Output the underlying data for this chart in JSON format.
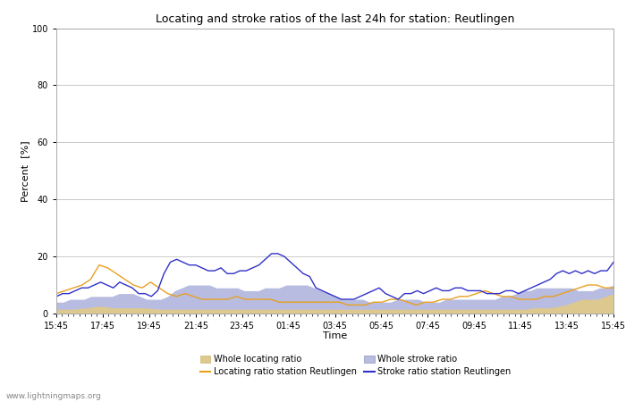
{
  "title": "Locating and stroke ratios of the last 24h for station: Reutlingen",
  "xlabel": "Time",
  "ylabel": "Percent  [%]",
  "xlim": [
    0,
    96
  ],
  "ylim": [
    0,
    100
  ],
  "yticks": [
    0,
    20,
    40,
    60,
    80,
    100
  ],
  "xtick_labels": [
    "15:45",
    "17:45",
    "19:45",
    "21:45",
    "23:45",
    "01:45",
    "03:45",
    "05:45",
    "07:45",
    "09:45",
    "11:45",
    "13:45",
    "15:45"
  ],
  "watermark": "www.lightningmaps.org",
  "color_locating_line": "#e8a020",
  "color_locating_fill": "#ddc890",
  "color_stroke_line": "#3030c8",
  "color_stroke_fill": "#b8bce0",
  "locating_ratio": [
    7,
    8,
    9,
    10,
    12,
    17,
    16,
    14,
    12,
    10,
    9,
    11,
    9,
    7,
    6,
    7,
    6,
    5,
    5,
    5,
    5,
    6,
    5,
    5,
    5,
    5,
    4,
    4,
    4,
    4,
    4,
    4,
    4,
    4,
    3,
    3,
    3,
    4,
    4,
    5,
    5,
    4,
    3,
    4,
    4,
    5,
    5,
    6,
    6,
    7,
    8,
    7,
    6,
    6,
    5,
    5,
    5,
    6,
    6,
    7,
    8,
    9,
    10,
    10,
    9,
    9
  ],
  "stroke_ratio": [
    6,
    7,
    7,
    8,
    9,
    9,
    10,
    11,
    10,
    9,
    11,
    10,
    9,
    7,
    7,
    6,
    8,
    14,
    18,
    19,
    18,
    17,
    17,
    16,
    15,
    15,
    16,
    14,
    14,
    15,
    15,
    16,
    17,
    19,
    21,
    21,
    20,
    18,
    16,
    14,
    13,
    9,
    8,
    7,
    6,
    5,
    5,
    5,
    6,
    7,
    8,
    9,
    7,
    6,
    5,
    7,
    7,
    8,
    7,
    8,
    9,
    8,
    8,
    9,
    9,
    8,
    8,
    8,
    7,
    7,
    7,
    8,
    8,
    7,
    8,
    9,
    10,
    11,
    12,
    14,
    15,
    14,
    15,
    14,
    15,
    14,
    15,
    15,
    18
  ],
  "locating_fill": [
    1.5,
    1.5,
    1.5,
    1.8,
    2.0,
    2.5,
    2.5,
    2.0,
    2.0,
    2.0,
    2.0,
    2.0,
    1.8,
    1.5,
    1.5,
    1.5,
    1.5,
    1.5,
    1.5,
    1.5,
    1.5,
    1.5,
    1.5,
    1.5,
    1.5,
    1.5,
    1.5,
    1.5,
    1.5,
    1.5,
    1.5,
    1.5,
    1.5,
    1.5,
    1.5,
    1.5,
    1.5,
    1.5,
    1.5,
    1.5,
    1.5,
    1.5,
    1.5,
    1.5,
    1.5,
    1.5,
    1.5,
    1.5,
    1.5,
    1.5,
    1.5,
    1.5,
    1.5,
    1.5,
    1.5,
    1.5,
    1.5,
    1.5,
    1.5,
    1.5,
    2,
    2,
    2,
    2.5,
    3,
    4,
    5,
    5,
    5,
    6,
    7
  ],
  "stroke_fill": [
    4,
    4,
    5,
    5,
    5,
    6,
    6,
    6,
    6,
    7,
    7,
    7,
    6,
    5,
    5,
    5,
    6,
    8,
    9,
    10,
    10,
    10,
    10,
    9,
    9,
    9,
    9,
    8,
    8,
    8,
    9,
    9,
    9,
    10,
    10,
    10,
    10,
    9,
    8,
    7,
    6,
    5,
    5,
    5,
    5,
    4,
    4,
    4,
    4,
    5,
    5,
    5,
    5,
    4,
    4,
    4,
    5,
    5,
    5,
    5,
    5,
    5,
    5,
    5,
    6,
    6,
    7,
    8,
    8,
    9,
    9,
    9,
    9,
    9,
    9,
    8,
    8,
    8,
    9,
    9,
    10
  ]
}
